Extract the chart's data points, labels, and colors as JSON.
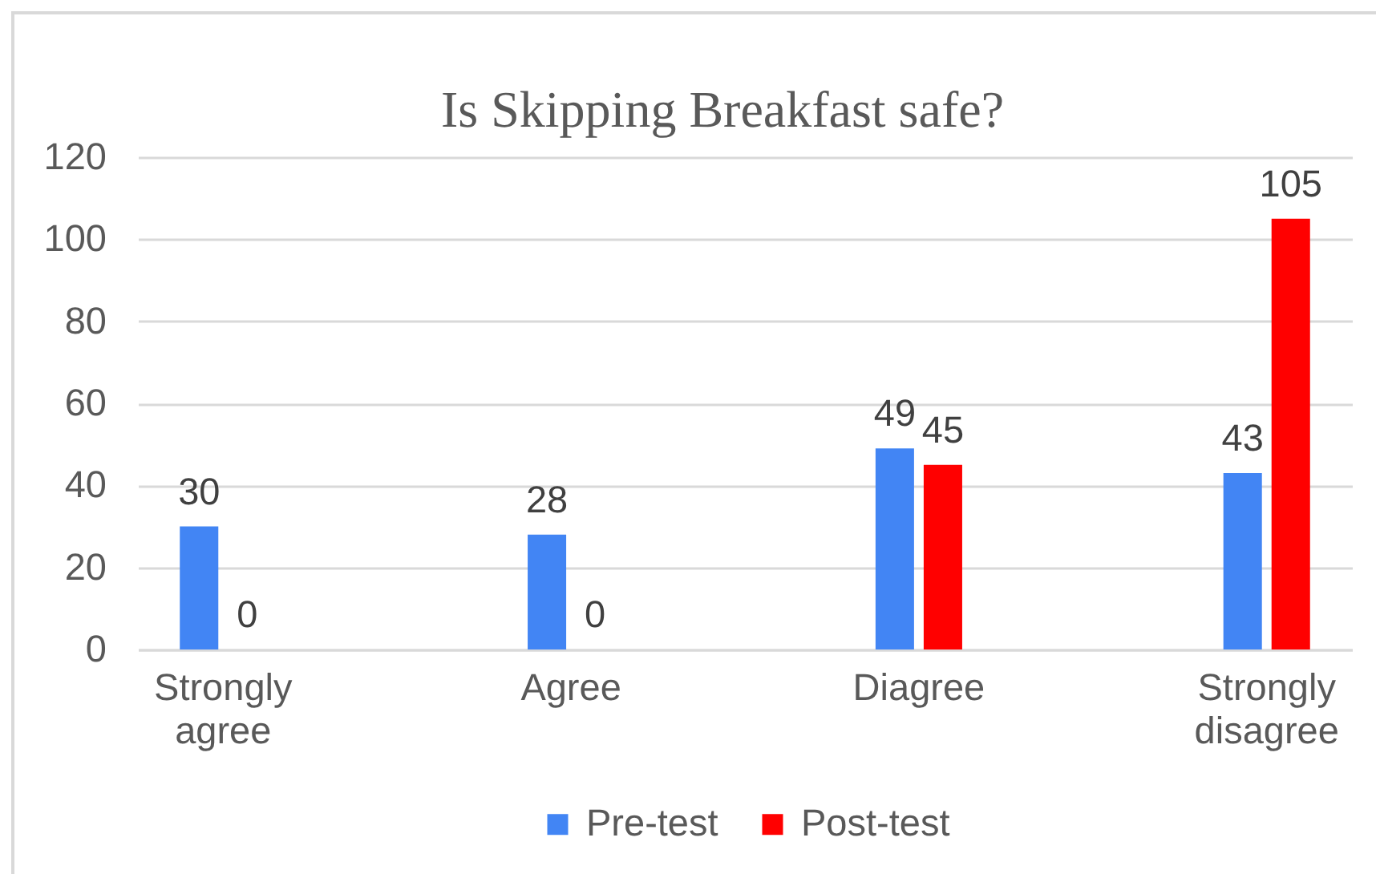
{
  "chart_data": {
    "type": "bar",
    "title": "Is Skipping Breakfast safe?",
    "categories": [
      "Strongly agree",
      "Agree",
      "Diagree",
      "Strongly disagree"
    ],
    "series": [
      {
        "name": "Pre-test",
        "color": "#4285f4",
        "values": [
          30,
          28,
          49,
          43
        ]
      },
      {
        "name": "Post-test",
        "color": "#ff0000",
        "values": [
          0,
          0,
          45,
          105
        ]
      }
    ],
    "ylim": [
      0,
      120
    ],
    "yticks": [
      0,
      20,
      40,
      60,
      80,
      100,
      120
    ],
    "grid": "y",
    "legend": "bottom",
    "data_labels": true
  }
}
